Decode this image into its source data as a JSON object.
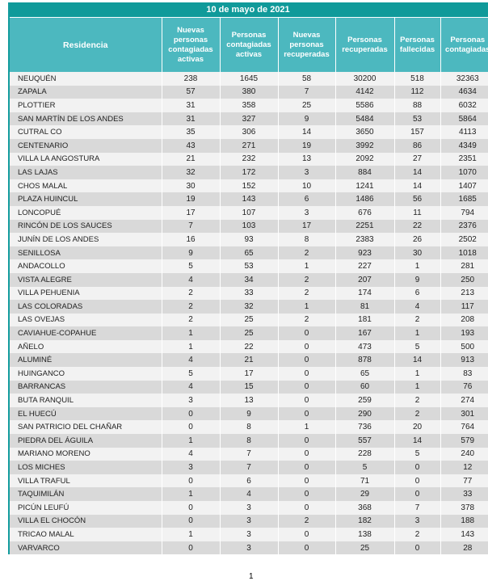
{
  "title": "10 de mayo de 2021",
  "columns": [
    "Residencia",
    "Nuevas personas contagiadas activas",
    "Personas contagiadas activas",
    "Nuevas personas recuperadas",
    "Personas recuperadas",
    "Personas fallecidas",
    "Personas contagiadas"
  ],
  "rows": [
    [
      "NEUQUÉN",
      "238",
      "1645",
      "58",
      "30200",
      "518",
      "32363"
    ],
    [
      "ZAPALA",
      "57",
      "380",
      "7",
      "4142",
      "112",
      "4634"
    ],
    [
      "PLOTTIER",
      "31",
      "358",
      "25",
      "5586",
      "88",
      "6032"
    ],
    [
      "SAN MARTÍN DE LOS ANDES",
      "31",
      "327",
      "9",
      "5484",
      "53",
      "5864"
    ],
    [
      "CUTRAL CO",
      "35",
      "306",
      "14",
      "3650",
      "157",
      "4113"
    ],
    [
      "CENTENARIO",
      "43",
      "271",
      "19",
      "3992",
      "86",
      "4349"
    ],
    [
      "VILLA LA ANGOSTURA",
      "21",
      "232",
      "13",
      "2092",
      "27",
      "2351"
    ],
    [
      "LAS LAJAS",
      "32",
      "172",
      "3",
      "884",
      "14",
      "1070"
    ],
    [
      "CHOS MALAL",
      "30",
      "152",
      "10",
      "1241",
      "14",
      "1407"
    ],
    [
      "PLAZA HUINCUL",
      "19",
      "143",
      "6",
      "1486",
      "56",
      "1685"
    ],
    [
      "LONCOPUÉ",
      "17",
      "107",
      "3",
      "676",
      "11",
      "794"
    ],
    [
      "RINCÓN DE LOS SAUCES",
      "7",
      "103",
      "17",
      "2251",
      "22",
      "2376"
    ],
    [
      "JUNÍN DE LOS ANDES",
      "16",
      "93",
      "8",
      "2383",
      "26",
      "2502"
    ],
    [
      "SENILLOSA",
      "9",
      "65",
      "2",
      "923",
      "30",
      "1018"
    ],
    [
      "ANDACOLLO",
      "5",
      "53",
      "1",
      "227",
      "1",
      "281"
    ],
    [
      "VISTA ALEGRE",
      "4",
      "34",
      "2",
      "207",
      "9",
      "250"
    ],
    [
      "VILLA PEHUENIA",
      "2",
      "33",
      "2",
      "174",
      "6",
      "213"
    ],
    [
      "LAS COLORADAS",
      "2",
      "32",
      "1",
      "81",
      "4",
      "117"
    ],
    [
      "LAS OVEJAS",
      "2",
      "25",
      "2",
      "181",
      "2",
      "208"
    ],
    [
      "CAVIAHUE-COPAHUE",
      "1",
      "25",
      "0",
      "167",
      "1",
      "193"
    ],
    [
      "AÑELO",
      "1",
      "22",
      "0",
      "473",
      "5",
      "500"
    ],
    [
      "ALUMINÉ",
      "4",
      "21",
      "0",
      "878",
      "14",
      "913"
    ],
    [
      "HUINGANCO",
      "5",
      "17",
      "0",
      "65",
      "1",
      "83"
    ],
    [
      "BARRANCAS",
      "4",
      "15",
      "0",
      "60",
      "1",
      "76"
    ],
    [
      "BUTA RANQUIL",
      "3",
      "13",
      "0",
      "259",
      "2",
      "274"
    ],
    [
      "EL HUECÚ",
      "0",
      "9",
      "0",
      "290",
      "2",
      "301"
    ],
    [
      "SAN PATRICIO DEL CHAÑAR",
      "0",
      "8",
      "1",
      "736",
      "20",
      "764"
    ],
    [
      "PIEDRA DEL ÁGUILA",
      "1",
      "8",
      "0",
      "557",
      "14",
      "579"
    ],
    [
      "MARIANO MORENO",
      "4",
      "7",
      "0",
      "228",
      "5",
      "240"
    ],
    [
      "LOS MICHES",
      "3",
      "7",
      "0",
      "5",
      "0",
      "12"
    ],
    [
      "VILLA TRAFUL",
      "0",
      "6",
      "0",
      "71",
      "0",
      "77"
    ],
    [
      "TAQUIMILÁN",
      "1",
      "4",
      "0",
      "29",
      "0",
      "33"
    ],
    [
      "PICÚN LEUFÚ",
      "0",
      "3",
      "0",
      "368",
      "7",
      "378"
    ],
    [
      "VILLA EL CHOCÓN",
      "0",
      "3",
      "2",
      "182",
      "3",
      "188"
    ],
    [
      "TRICAO MALAL",
      "1",
      "3",
      "0",
      "138",
      "2",
      "143"
    ],
    [
      "VARVARCO",
      "0",
      "3",
      "0",
      "25",
      "0",
      "28"
    ]
  ],
  "page_number": "1"
}
